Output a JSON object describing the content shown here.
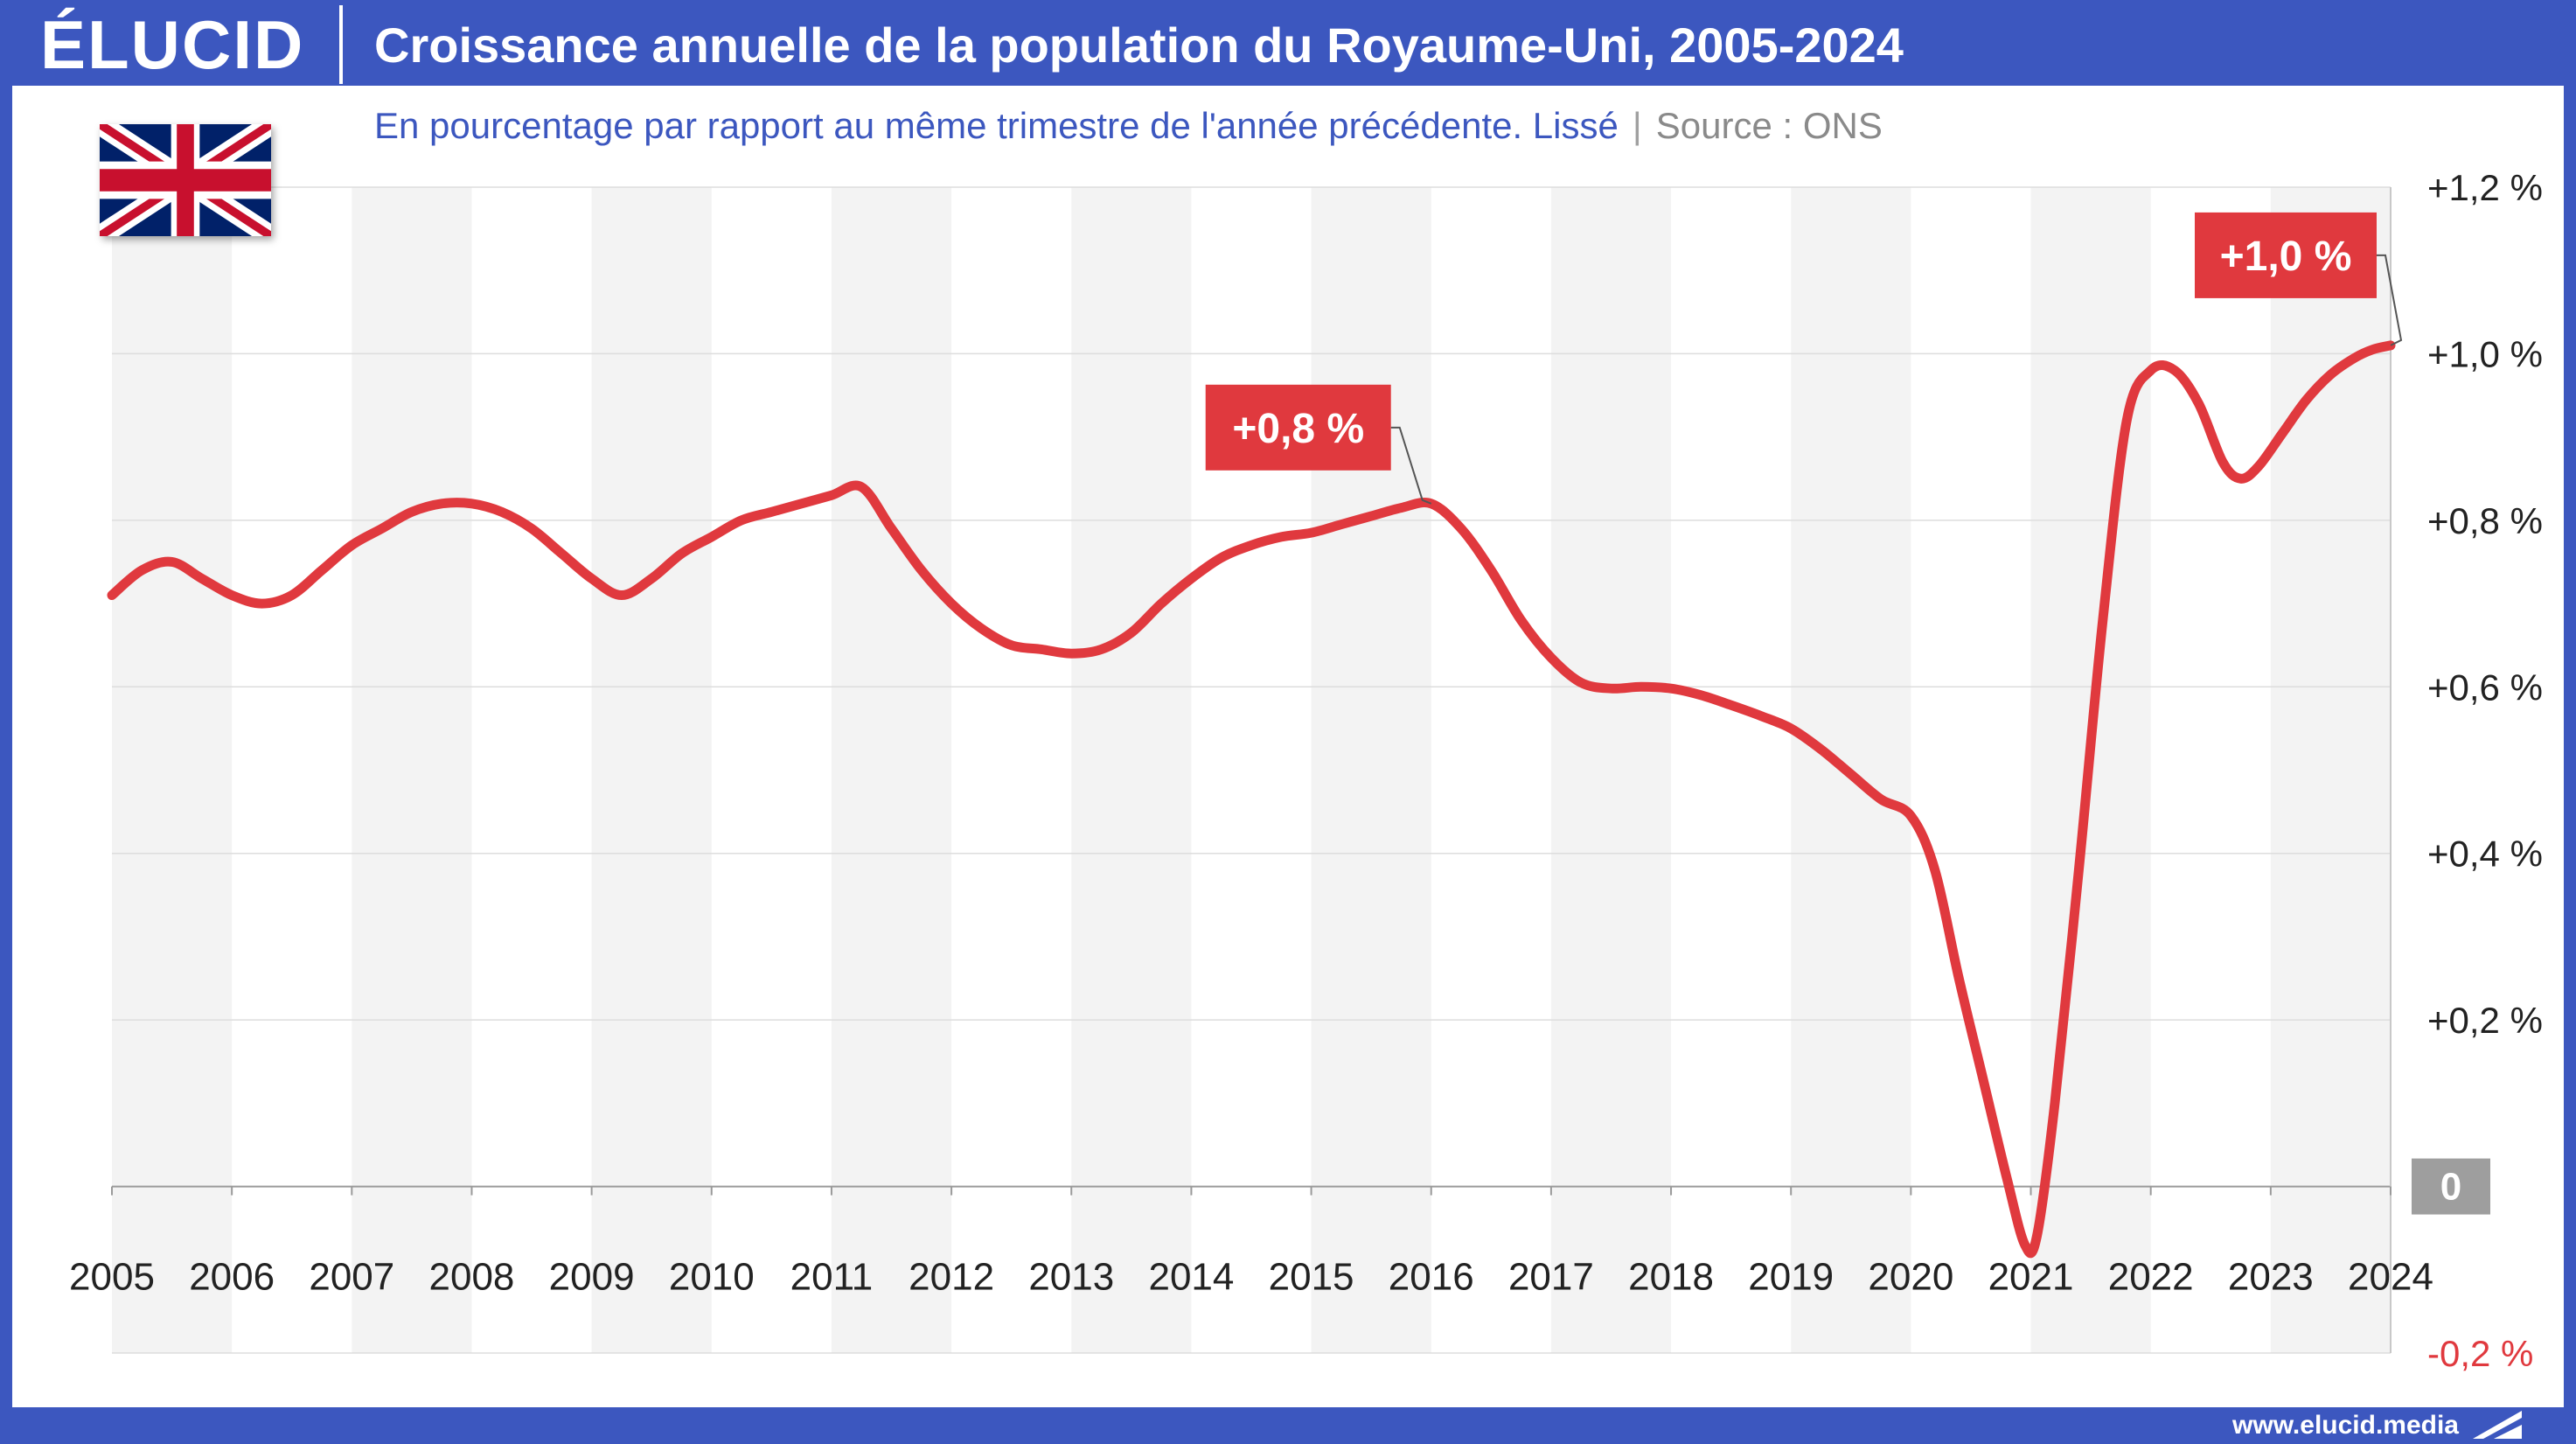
{
  "header": {
    "logo_text": "ÉLUCID",
    "title": "Croissance annuelle de la population du Royaume-Uni, 2005-2024"
  },
  "subtitle": {
    "text": "En pourcentage par rapport au même trimestre de l'année précédente. Lissé",
    "separator": "|",
    "source": "Source : ONS"
  },
  "flag": {
    "icon": "uk-flag-icon"
  },
  "footer": {
    "url": "www.elucid.media"
  },
  "colors": {
    "brand": "#3c57bf",
    "series": "#e0393e",
    "grid": "#dddddd",
    "band": "#f3f3f3",
    "zero_label_bg": "#9e9e9e",
    "negative_label": "#e0393e"
  },
  "chart_data": {
    "type": "line",
    "title": "Croissance annuelle de la population du Royaume-Uni, 2005-2024",
    "subtitle": "En pourcentage par rapport au même trimestre de l'année précédente. Lissé",
    "xlabel": "",
    "ylabel": "",
    "xlim": [
      2005,
      2024
    ],
    "ylim": [
      -0.2,
      1.2
    ],
    "x_ticks": [
      "2005",
      "2006",
      "2007",
      "2008",
      "2009",
      "2010",
      "2011",
      "2012",
      "2013",
      "2014",
      "2015",
      "2016",
      "2017",
      "2018",
      "2019",
      "2020",
      "2021",
      "2022",
      "2023",
      "2024"
    ],
    "y_ticks": [
      {
        "value": 1.2,
        "label": "+1,2 %"
      },
      {
        "value": 1.0,
        "label": "+1,0 %"
      },
      {
        "value": 0.8,
        "label": "+0,8 %"
      },
      {
        "value": 0.6,
        "label": "+0,6 %"
      },
      {
        "value": 0.4,
        "label": "+0,4 %"
      },
      {
        "value": 0.2,
        "label": "+0,2 %"
      },
      {
        "value": 0.0,
        "label": "0"
      },
      {
        "value": -0.2,
        "label": "-0,2 %"
      }
    ],
    "grid": true,
    "alternating_year_bands": true,
    "series": [
      {
        "values": [
          [
            2005.0,
            0.71
          ],
          [
            2005.25,
            0.74
          ],
          [
            2005.5,
            0.75
          ],
          [
            2005.75,
            0.73
          ],
          [
            2006.0,
            0.71
          ],
          [
            2006.25,
            0.7
          ],
          [
            2006.5,
            0.71
          ],
          [
            2006.75,
            0.74
          ],
          [
            2007.0,
            0.77
          ],
          [
            2007.25,
            0.79
          ],
          [
            2007.5,
            0.81
          ],
          [
            2007.75,
            0.82
          ],
          [
            2008.0,
            0.82
          ],
          [
            2008.25,
            0.81
          ],
          [
            2008.5,
            0.79
          ],
          [
            2008.75,
            0.76
          ],
          [
            2009.0,
            0.73
          ],
          [
            2009.25,
            0.71
          ],
          [
            2009.5,
            0.73
          ],
          [
            2009.75,
            0.76
          ],
          [
            2010.0,
            0.78
          ],
          [
            2010.25,
            0.8
          ],
          [
            2010.5,
            0.81
          ],
          [
            2010.75,
            0.82
          ],
          [
            2011.0,
            0.83
          ],
          [
            2011.25,
            0.84
          ],
          [
            2011.5,
            0.79
          ],
          [
            2011.75,
            0.74
          ],
          [
            2012.0,
            0.7
          ],
          [
            2012.25,
            0.67
          ],
          [
            2012.5,
            0.65
          ],
          [
            2012.75,
            0.645
          ],
          [
            2013.0,
            0.64
          ],
          [
            2013.25,
            0.645
          ],
          [
            2013.5,
            0.665
          ],
          [
            2013.75,
            0.7
          ],
          [
            2014.0,
            0.73
          ],
          [
            2014.25,
            0.755
          ],
          [
            2014.5,
            0.77
          ],
          [
            2014.75,
            0.78
          ],
          [
            2015.0,
            0.785
          ],
          [
            2015.25,
            0.795
          ],
          [
            2015.5,
            0.805
          ],
          [
            2015.75,
            0.815
          ],
          [
            2016.0,
            0.82
          ],
          [
            2016.25,
            0.79
          ],
          [
            2016.5,
            0.74
          ],
          [
            2016.75,
            0.68
          ],
          [
            2017.0,
            0.635
          ],
          [
            2017.25,
            0.605
          ],
          [
            2017.5,
            0.598
          ],
          [
            2017.75,
            0.6
          ],
          [
            2018.0,
            0.598
          ],
          [
            2018.25,
            0.59
          ],
          [
            2018.5,
            0.578
          ],
          [
            2018.75,
            0.565
          ],
          [
            2019.0,
            0.55
          ],
          [
            2019.25,
            0.525
          ],
          [
            2019.5,
            0.495
          ],
          [
            2019.75,
            0.465
          ],
          [
            2020.0,
            0.445
          ],
          [
            2020.2,
            0.38
          ],
          [
            2020.4,
            0.25
          ],
          [
            2020.6,
            0.13
          ],
          [
            2020.8,
            0.01
          ],
          [
            2020.95,
            -0.07
          ],
          [
            2021.05,
            -0.06
          ],
          [
            2021.2,
            0.1
          ],
          [
            2021.4,
            0.38
          ],
          [
            2021.6,
            0.68
          ],
          [
            2021.8,
            0.92
          ],
          [
            2022.0,
            0.98
          ],
          [
            2022.2,
            0.98
          ],
          [
            2022.4,
            0.94
          ],
          [
            2022.6,
            0.87
          ],
          [
            2022.75,
            0.85
          ],
          [
            2022.9,
            0.865
          ],
          [
            2023.1,
            0.905
          ],
          [
            2023.3,
            0.945
          ],
          [
            2023.5,
            0.975
          ],
          [
            2023.7,
            0.995
          ],
          [
            2023.85,
            1.005
          ],
          [
            2024.0,
            1.01
          ]
        ]
      }
    ],
    "annotations": [
      {
        "x": 2016.0,
        "y": 0.82,
        "label": "+0,8 %"
      },
      {
        "x": 2024.0,
        "y": 1.01,
        "label": "+1,0 %"
      }
    ]
  }
}
